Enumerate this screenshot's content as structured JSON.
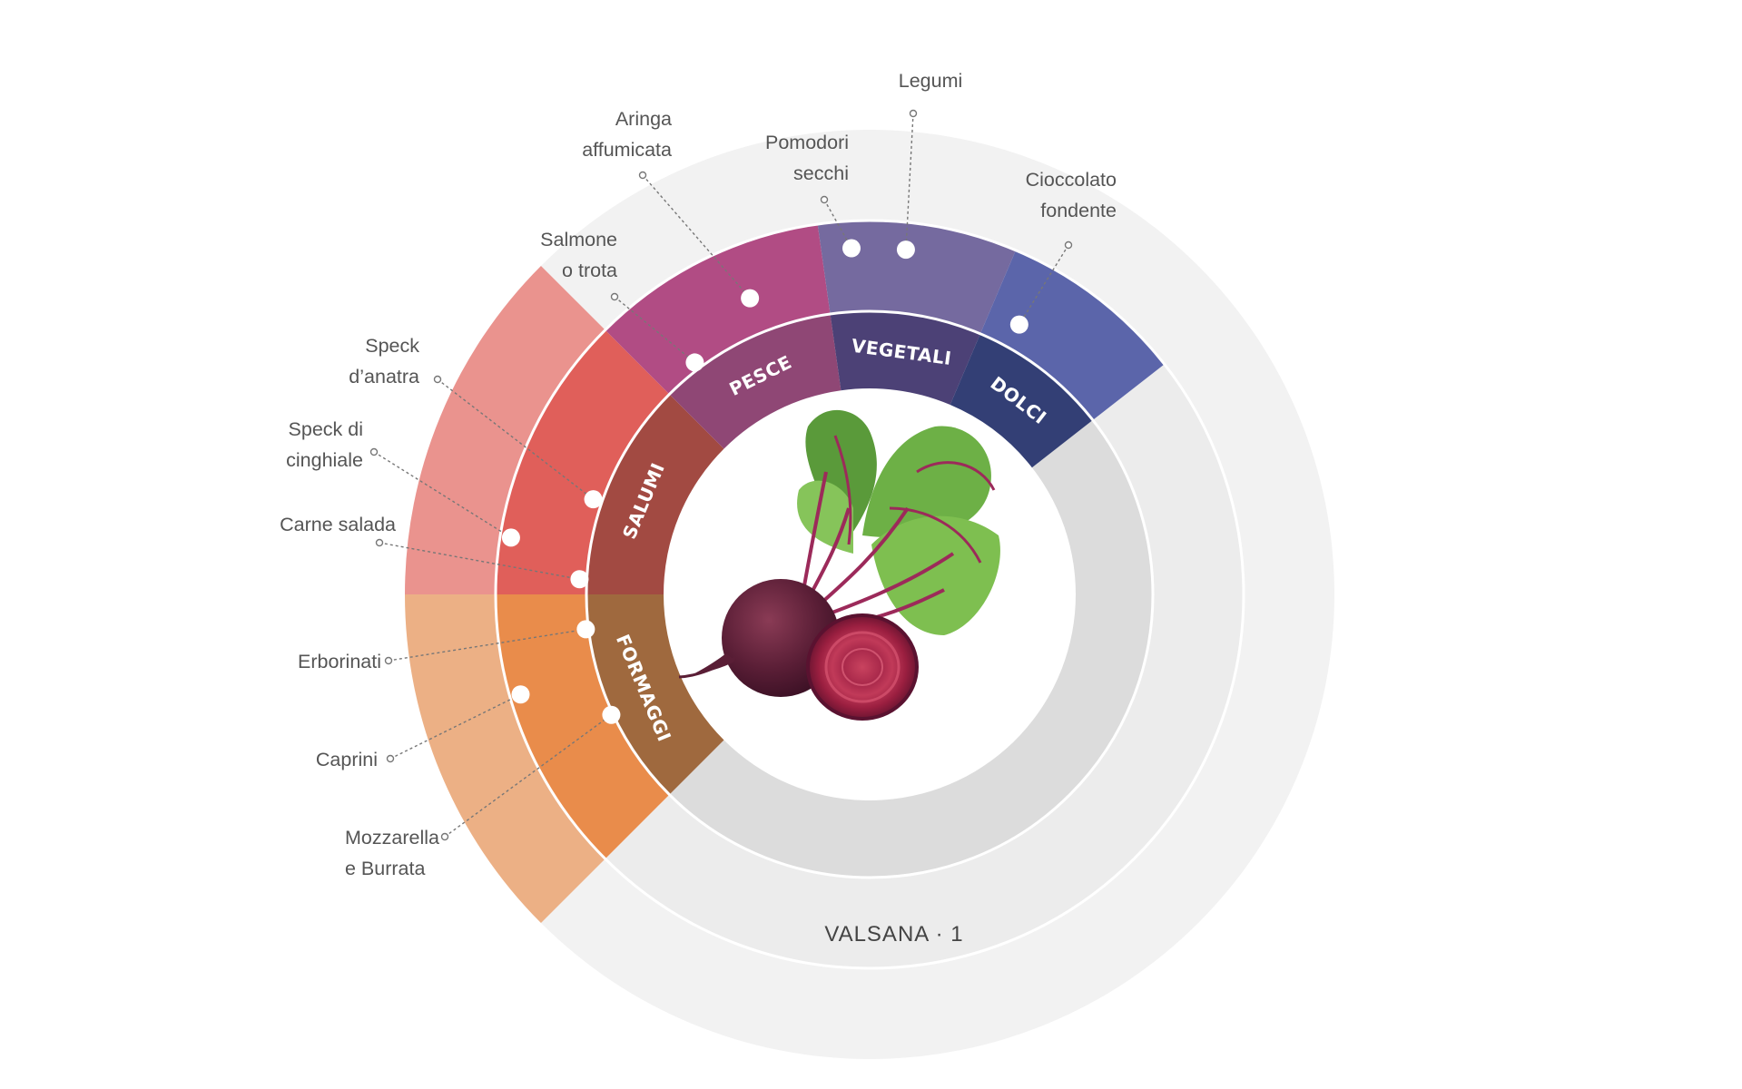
{
  "colors": {
    "center": "#ffffff",
    "empty_ring1": "#dcdcdc",
    "empty_ring2": "#ececec",
    "empty_ring3": "#f2f2f2",
    "separator": "#ffffff",
    "leader": "#777777"
  },
  "center_image": {
    "icon": "beetroot-image"
  },
  "categories": [
    {
      "key": "salumi",
      "label": "SALUMI",
      "ring1": "#a24a42",
      "ring2": "#e05f5a",
      "ring3": "#ea938e",
      "span_deg": 45
    },
    {
      "key": "pesce",
      "label": "PESCE",
      "ring1": "#8f4775",
      "ring2": "#b14c84"
    },
    {
      "key": "vegetali",
      "label": "VEGETALI",
      "ring1": "#4c4176",
      "ring2": "#756a9f"
    },
    {
      "key": "dolci",
      "label": "DOLCI",
      "ring1": "#333f75",
      "ring2": "#5b65aa"
    },
    {
      "key": "formaggi",
      "label": "FORMAGGI",
      "ring1": "#9f693e",
      "ring2": "#e98c4b",
      "ring3": "#ecb085",
      "span_deg": 45
    }
  ],
  "items": [
    {
      "id": "speck-anatra",
      "lines": [
        "Speck",
        "d’anatra"
      ]
    },
    {
      "id": "speck-cinghiale",
      "lines": [
        "Speck di",
        "cinghiale"
      ]
    },
    {
      "id": "carne-salada",
      "lines": [
        "Carne salada"
      ]
    },
    {
      "id": "salmone-trota",
      "lines": [
        "Salmone",
        "o trota"
      ]
    },
    {
      "id": "aringa-affumicata",
      "lines": [
        "Aringa",
        "affumicata"
      ]
    },
    {
      "id": "pomodori-secchi",
      "lines": [
        "Pomodori",
        "secchi"
      ]
    },
    {
      "id": "legumi",
      "lines": [
        "Legumi"
      ]
    },
    {
      "id": "cioccolato-fondente",
      "lines": [
        "Cioccolato",
        "fondente"
      ]
    },
    {
      "id": "erborinati",
      "lines": [
        "Erborinati"
      ]
    },
    {
      "id": "caprini",
      "lines": [
        "Caprini"
      ]
    },
    {
      "id": "mozzarella-burrata",
      "lines": [
        "Mozzarella",
        "e Burrata"
      ]
    }
  ],
  "footer": {
    "title": "VALSANA · 1"
  }
}
